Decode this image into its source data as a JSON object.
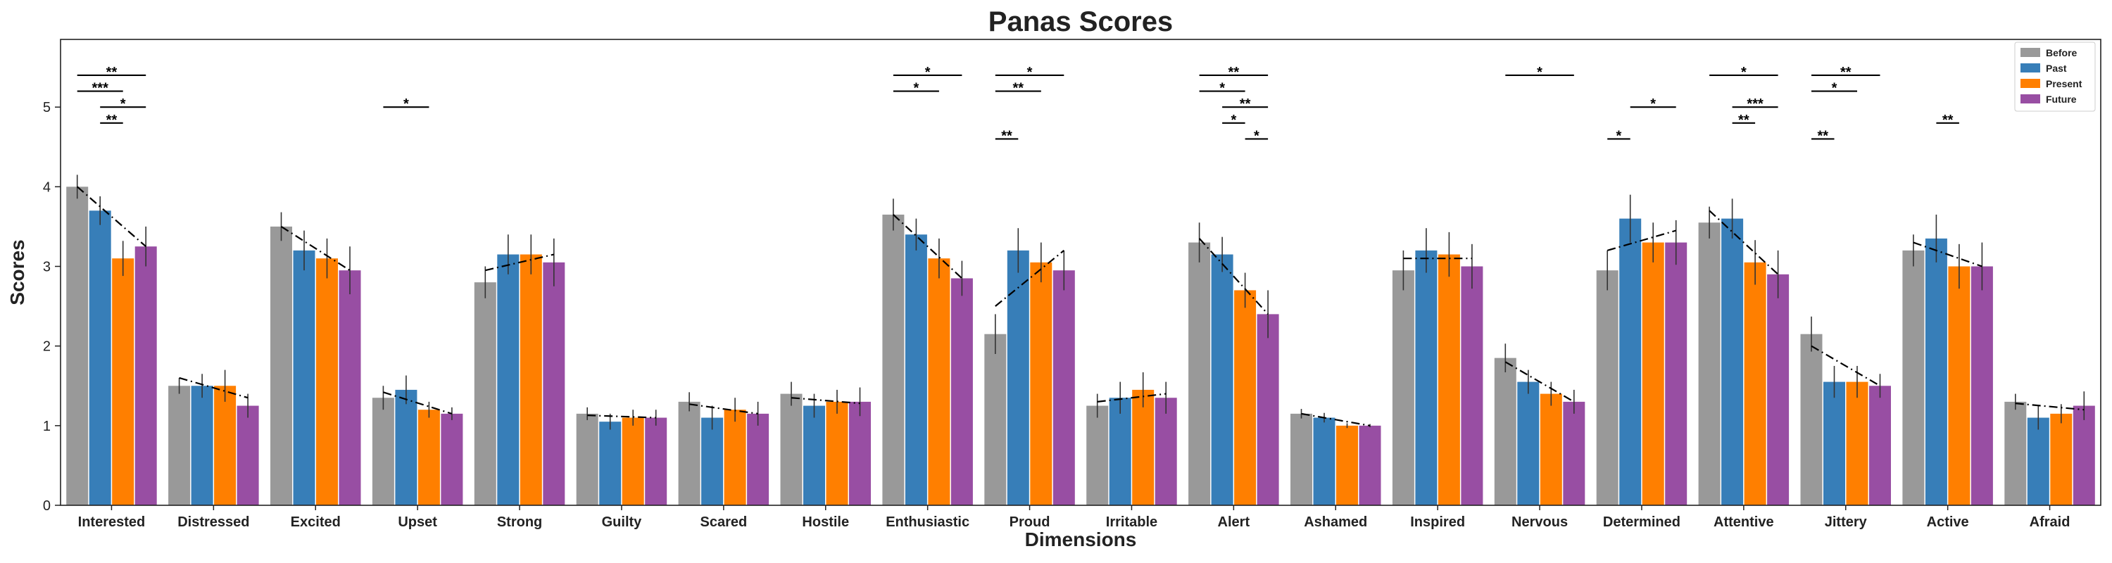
{
  "chart_data": {
    "type": "bar",
    "title": "Panas Scores",
    "xlabel": "Dimensions",
    "ylabel": "Scores",
    "ylim": [
      0,
      5.85
    ],
    "yticks": [
      0,
      1,
      2,
      3,
      4,
      5
    ],
    "legend_position": "top-right",
    "categories": [
      "Interested",
      "Distressed",
      "Excited",
      "Upset",
      "Strong",
      "Guilty",
      "Scared",
      "Hostile",
      "Enthusiastic",
      "Proud",
      "Irritable",
      "Alert",
      "Ashamed",
      "Inspired",
      "Nervous",
      "Determined",
      "Attentive",
      "Jittery",
      "Active",
      "Afraid"
    ],
    "series": [
      {
        "name": "Before",
        "color": "#999999",
        "values": [
          4.0,
          1.5,
          3.5,
          1.35,
          2.8,
          1.15,
          1.3,
          1.4,
          3.65,
          2.15,
          1.25,
          3.3,
          1.15,
          2.95,
          1.85,
          2.95,
          3.55,
          2.15,
          3.2,
          1.3
        ],
        "errors": [
          0.15,
          0.1,
          0.18,
          0.15,
          0.2,
          0.08,
          0.12,
          0.15,
          0.2,
          0.25,
          0.15,
          0.25,
          0.06,
          0.25,
          0.18,
          0.25,
          0.2,
          0.22,
          0.2,
          0.1
        ]
      },
      {
        "name": "Past",
        "color": "#377eb8",
        "values": [
          3.7,
          1.5,
          3.2,
          1.45,
          3.15,
          1.05,
          1.1,
          1.25,
          3.4,
          3.2,
          1.35,
          3.15,
          1.1,
          3.2,
          1.55,
          3.6,
          3.6,
          1.55,
          3.35,
          1.1
        ],
        "errors": [
          0.18,
          0.15,
          0.25,
          0.18,
          0.25,
          0.1,
          0.15,
          0.15,
          0.2,
          0.28,
          0.2,
          0.22,
          0.06,
          0.28,
          0.15,
          0.3,
          0.25,
          0.2,
          0.3,
          0.15
        ]
      },
      {
        "name": "Present",
        "color": "#ff7f00",
        "values": [
          3.1,
          1.5,
          3.1,
          1.2,
          3.15,
          1.1,
          1.2,
          1.3,
          3.1,
          3.05,
          1.45,
          2.7,
          1.0,
          3.15,
          1.4,
          3.3,
          3.05,
          1.55,
          3.0,
          1.15
        ],
        "errors": [
          0.22,
          0.2,
          0.25,
          0.1,
          0.25,
          0.1,
          0.15,
          0.15,
          0.25,
          0.25,
          0.22,
          0.22,
          0.03,
          0.28,
          0.15,
          0.25,
          0.28,
          0.2,
          0.28,
          0.12
        ]
      },
      {
        "name": "Future",
        "color": "#984ea3",
        "values": [
          3.25,
          1.25,
          2.95,
          1.15,
          3.05,
          1.1,
          1.15,
          1.3,
          2.85,
          2.95,
          1.35,
          2.4,
          1.0,
          3.0,
          1.3,
          3.3,
          2.9,
          1.5,
          3.0,
          1.25
        ],
        "errors": [
          0.25,
          0.15,
          0.3,
          0.08,
          0.3,
          0.1,
          0.15,
          0.18,
          0.22,
          0.25,
          0.2,
          0.3,
          0.02,
          0.28,
          0.15,
          0.28,
          0.3,
          0.15,
          0.3,
          0.18
        ]
      }
    ],
    "trend_lines": [
      {
        "category": "Interested",
        "y_start": 4.0,
        "y_end": 3.25
      },
      {
        "category": "Distressed",
        "y_start": 1.6,
        "y_end": 1.35
      },
      {
        "category": "Excited",
        "y_start": 3.5,
        "y_end": 2.95
      },
      {
        "category": "Upset",
        "y_start": 1.42,
        "y_end": 1.15
      },
      {
        "category": "Strong",
        "y_start": 2.95,
        "y_end": 3.15
      },
      {
        "category": "Guilty",
        "y_start": 1.13,
        "y_end": 1.1
      },
      {
        "category": "Scared",
        "y_start": 1.27,
        "y_end": 1.15
      },
      {
        "category": "Hostile",
        "y_start": 1.35,
        "y_end": 1.28
      },
      {
        "category": "Enthusiastic",
        "y_start": 3.65,
        "y_end": 2.85
      },
      {
        "category": "Proud",
        "y_start": 2.5,
        "y_end": 3.2
      },
      {
        "category": "Irritable",
        "y_start": 1.3,
        "y_end": 1.4
      },
      {
        "category": "Alert",
        "y_start": 3.35,
        "y_end": 2.4
      },
      {
        "category": "Ashamed",
        "y_start": 1.15,
        "y_end": 1.0
      },
      {
        "category": "Inspired",
        "y_start": 3.1,
        "y_end": 3.1
      },
      {
        "category": "Nervous",
        "y_start": 1.8,
        "y_end": 1.3
      },
      {
        "category": "Determined",
        "y_start": 3.2,
        "y_end": 3.45
      },
      {
        "category": "Attentive",
        "y_start": 3.7,
        "y_end": 2.9
      },
      {
        "category": "Jittery",
        "y_start": 2.0,
        "y_end": 1.5
      },
      {
        "category": "Active",
        "y_start": 3.3,
        "y_end": 3.0
      },
      {
        "category": "Afraid",
        "y_start": 1.28,
        "y_end": 1.2
      }
    ],
    "significance": [
      {
        "category": "Interested",
        "from": 0,
        "to": 3,
        "y": 5.4,
        "label": "**"
      },
      {
        "category": "Interested",
        "from": 0,
        "to": 2,
        "y": 5.2,
        "label": "***"
      },
      {
        "category": "Interested",
        "from": 1,
        "to": 3,
        "y": 5.0,
        "label": "*"
      },
      {
        "category": "Interested",
        "from": 1,
        "to": 2,
        "y": 4.8,
        "label": "**"
      },
      {
        "category": "Upset",
        "from": 0,
        "to": 2,
        "y": 5.0,
        "label": "*"
      },
      {
        "category": "Enthusiastic",
        "from": 0,
        "to": 3,
        "y": 5.4,
        "label": "*"
      },
      {
        "category": "Enthusiastic",
        "from": 0,
        "to": 2,
        "y": 5.2,
        "label": "*"
      },
      {
        "category": "Proud",
        "from": 0,
        "to": 3,
        "y": 5.4,
        "label": "*"
      },
      {
        "category": "Proud",
        "from": 0,
        "to": 2,
        "y": 5.2,
        "label": "**"
      },
      {
        "category": "Proud",
        "from": 0,
        "to": 1,
        "y": 4.6,
        "label": "**"
      },
      {
        "category": "Alert",
        "from": 0,
        "to": 3,
        "y": 5.4,
        "label": "**"
      },
      {
        "category": "Alert",
        "from": 0,
        "to": 2,
        "y": 5.2,
        "label": "*"
      },
      {
        "category": "Alert",
        "from": 1,
        "to": 3,
        "y": 5.0,
        "label": "**"
      },
      {
        "category": "Alert",
        "from": 1,
        "to": 2,
        "y": 4.8,
        "label": "*"
      },
      {
        "category": "Alert",
        "from": 2,
        "to": 3,
        "y": 4.6,
        "label": "*"
      },
      {
        "category": "Nervous",
        "from": 0,
        "to": 3,
        "y": 5.4,
        "label": "*"
      },
      {
        "category": "Determined",
        "from": 1,
        "to": 3,
        "y": 5.0,
        "label": "*"
      },
      {
        "category": "Determined",
        "from": 0,
        "to": 1,
        "y": 4.6,
        "label": "*"
      },
      {
        "category": "Attentive",
        "from": 0,
        "to": 3,
        "y": 5.4,
        "label": "*"
      },
      {
        "category": "Attentive",
        "from": 1,
        "to": 3,
        "y": 5.0,
        "label": "***"
      },
      {
        "category": "Attentive",
        "from": 1,
        "to": 2,
        "y": 4.8,
        "label": "**"
      },
      {
        "category": "Jittery",
        "from": 0,
        "to": 3,
        "y": 5.4,
        "label": "**"
      },
      {
        "category": "Jittery",
        "from": 0,
        "to": 2,
        "y": 5.2,
        "label": "*"
      },
      {
        "category": "Jittery",
        "from": 0,
        "to": 1,
        "y": 4.6,
        "label": "**"
      },
      {
        "category": "Active",
        "from": 1,
        "to": 2,
        "y": 4.8,
        "label": "**"
      }
    ]
  }
}
